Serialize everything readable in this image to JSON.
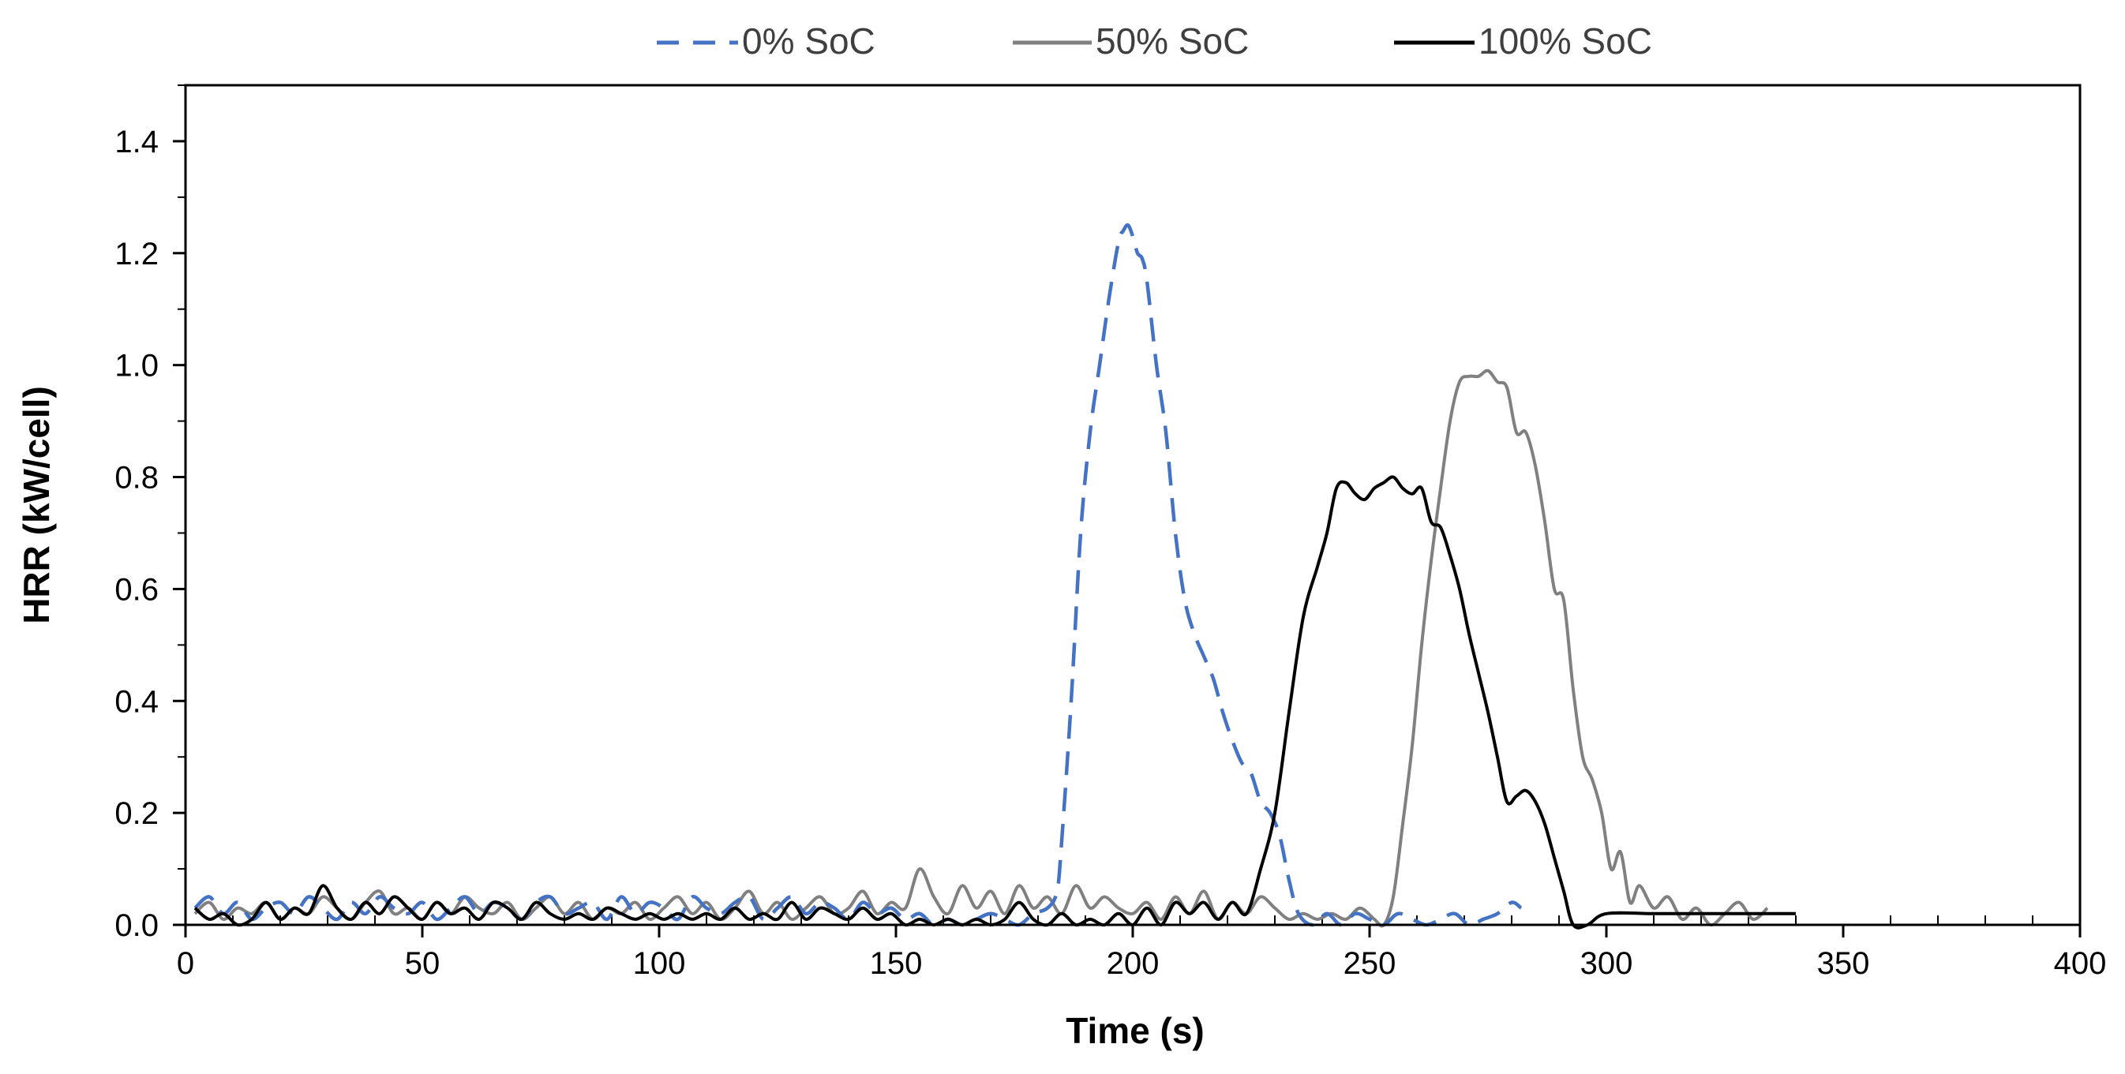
{
  "chart_data": {
    "type": "line",
    "title": "",
    "xlabel": "Time (s)",
    "ylabel": "HRR (kW/cell)",
    "xlim": [
      0,
      400
    ],
    "ylim": [
      0,
      1.5
    ],
    "xticks": [
      0,
      50,
      100,
      150,
      200,
      250,
      300,
      350,
      400
    ],
    "xtick_labels": [
      "0",
      "50",
      "100",
      "150",
      "200",
      "250",
      "300",
      "350",
      "400"
    ],
    "yticks": [
      0.0,
      0.2,
      0.4,
      0.6,
      0.8,
      1.0,
      1.2,
      1.4
    ],
    "ytick_labels": [
      "0.0",
      "0.2",
      "0.4",
      "0.6",
      "0.8",
      "1.0",
      "1.2",
      "1.4"
    ],
    "grid": false,
    "legend_position": "top",
    "series": [
      {
        "name": "0% SoC",
        "color": "#4472C4",
        "dash": "dashed",
        "x": [
          2,
          5,
          8,
          11,
          14,
          17,
          20,
          23,
          26,
          29,
          32,
          35,
          38,
          41,
          44,
          47,
          50,
          53,
          56,
          59,
          62,
          65,
          68,
          71,
          74,
          77,
          80,
          83,
          86,
          89,
          92,
          95,
          98,
          101,
          104,
          107,
          110,
          113,
          116,
          119,
          122,
          125,
          128,
          131,
          134,
          137,
          140,
          143,
          146,
          149,
          152,
          155,
          158,
          161,
          164,
          167,
          170,
          173,
          176,
          179,
          182,
          184,
          185,
          187,
          189,
          191,
          193,
          195,
          197,
          198,
          199,
          200,
          201,
          202,
          203,
          205,
          207,
          209,
          211,
          213,
          215,
          217,
          219,
          221,
          223,
          225,
          227,
          229,
          231,
          233,
          235,
          238,
          241,
          244,
          247,
          250,
          253,
          256,
          259,
          262,
          265,
          268,
          271,
          274,
          277,
          280,
          282
        ],
        "y": [
          0.03,
          0.05,
          0.02,
          0.04,
          0.01,
          0.03,
          0.04,
          0.02,
          0.05,
          0.03,
          0.01,
          0.04,
          0.02,
          0.05,
          0.03,
          0.02,
          0.04,
          0.01,
          0.03,
          0.05,
          0.02,
          0.04,
          0.03,
          0.01,
          0.04,
          0.05,
          0.02,
          0.03,
          0.04,
          0.01,
          0.05,
          0.02,
          0.04,
          0.03,
          0.01,
          0.05,
          0.03,
          0.02,
          0.04,
          0.05,
          0.01,
          0.03,
          0.05,
          0.02,
          0.04,
          0.03,
          0.01,
          0.04,
          0.02,
          0.03,
          0.01,
          0.02,
          0.0,
          0.01,
          0.0,
          0.01,
          0.02,
          0.01,
          0.0,
          0.02,
          0.03,
          0.06,
          0.15,
          0.4,
          0.7,
          0.88,
          1.0,
          1.12,
          1.22,
          1.24,
          1.25,
          1.23,
          1.2,
          1.19,
          1.15,
          1.0,
          0.88,
          0.7,
          0.58,
          0.52,
          0.48,
          0.44,
          0.38,
          0.33,
          0.29,
          0.27,
          0.22,
          0.2,
          0.16,
          0.08,
          0.02,
          0.0,
          0.02,
          0.0,
          0.02,
          0.01,
          0.0,
          0.02,
          0.01,
          0.0,
          0.01,
          0.02,
          0.0,
          0.01,
          0.02,
          0.04,
          0.03
        ]
      },
      {
        "name": "50% SoC",
        "color": "#808080",
        "dash": "solid",
        "x": [
          2,
          5,
          8,
          11,
          14,
          17,
          20,
          23,
          26,
          29,
          32,
          35,
          38,
          41,
          44,
          47,
          50,
          53,
          56,
          59,
          62,
          65,
          68,
          71,
          74,
          77,
          80,
          83,
          86,
          89,
          92,
          95,
          98,
          101,
          104,
          107,
          110,
          113,
          116,
          119,
          122,
          125,
          128,
          131,
          134,
          137,
          140,
          143,
          146,
          149,
          152,
          155,
          158,
          161,
          164,
          167,
          170,
          173,
          176,
          179,
          182,
          185,
          188,
          191,
          194,
          197,
          200,
          203,
          206,
          209,
          212,
          215,
          218,
          221,
          224,
          227,
          230,
          233,
          236,
          239,
          242,
          245,
          248,
          251,
          253,
          255,
          257,
          259,
          261,
          263,
          265,
          267,
          269,
          271,
          273,
          275,
          277,
          279,
          281,
          283,
          285,
          287,
          289,
          291,
          293,
          295,
          297,
          299,
          301,
          303,
          305,
          307,
          310,
          313,
          316,
          319,
          322,
          325,
          328,
          331,
          334
        ],
        "y": [
          0.02,
          0.04,
          0.01,
          0.03,
          0.02,
          0.04,
          0.01,
          0.03,
          0.02,
          0.05,
          0.03,
          0.01,
          0.04,
          0.06,
          0.02,
          0.03,
          0.01,
          0.04,
          0.02,
          0.05,
          0.03,
          0.02,
          0.04,
          0.01,
          0.03,
          0.05,
          0.02,
          0.04,
          0.01,
          0.03,
          0.02,
          0.04,
          0.01,
          0.03,
          0.05,
          0.02,
          0.04,
          0.01,
          0.03,
          0.06,
          0.02,
          0.04,
          0.01,
          0.03,
          0.05,
          0.02,
          0.03,
          0.06,
          0.02,
          0.04,
          0.03,
          0.1,
          0.05,
          0.02,
          0.07,
          0.03,
          0.06,
          0.02,
          0.07,
          0.03,
          0.05,
          0.02,
          0.07,
          0.03,
          0.05,
          0.03,
          0.02,
          0.04,
          0.01,
          0.05,
          0.02,
          0.06,
          0.01,
          0.04,
          0.02,
          0.05,
          0.03,
          0.01,
          0.02,
          0.01,
          0.02,
          0.01,
          0.03,
          0.01,
          0.0,
          0.05,
          0.18,
          0.32,
          0.5,
          0.65,
          0.78,
          0.9,
          0.97,
          0.98,
          0.98,
          0.99,
          0.97,
          0.96,
          0.88,
          0.88,
          0.82,
          0.72,
          0.6,
          0.58,
          0.42,
          0.3,
          0.26,
          0.2,
          0.1,
          0.13,
          0.04,
          0.07,
          0.03,
          0.05,
          0.01,
          0.03,
          0.0,
          0.02,
          0.04,
          0.01,
          0.03
        ]
      },
      {
        "name": "100% SoC",
        "color": "#000000",
        "dash": "solid",
        "x": [
          2,
          5,
          8,
          11,
          14,
          17,
          20,
          23,
          26,
          29,
          32,
          35,
          38,
          41,
          44,
          47,
          50,
          53,
          56,
          59,
          62,
          65,
          68,
          71,
          74,
          77,
          80,
          83,
          86,
          89,
          92,
          95,
          98,
          101,
          104,
          107,
          110,
          113,
          116,
          119,
          122,
          125,
          128,
          131,
          134,
          137,
          140,
          143,
          146,
          149,
          152,
          155,
          158,
          161,
          164,
          167,
          170,
          173,
          176,
          179,
          182,
          185,
          188,
          191,
          194,
          197,
          200,
          203,
          206,
          209,
          212,
          215,
          218,
          221,
          224,
          227,
          230,
          233,
          236,
          239,
          241,
          243,
          245,
          247,
          249,
          251,
          253,
          255,
          257,
          259,
          261,
          263,
          265,
          267,
          269,
          271,
          273,
          275,
          277,
          279,
          281,
          283,
          285,
          287,
          289,
          291,
          293,
          296,
          300,
          310,
          320,
          330,
          335,
          340
        ],
        "y": [
          0.03,
          0.01,
          0.02,
          0.0,
          0.01,
          0.04,
          0.01,
          0.03,
          0.02,
          0.07,
          0.03,
          0.01,
          0.04,
          0.02,
          0.05,
          0.03,
          0.01,
          0.04,
          0.02,
          0.03,
          0.01,
          0.04,
          0.03,
          0.01,
          0.04,
          0.02,
          0.01,
          0.02,
          0.01,
          0.03,
          0.02,
          0.01,
          0.02,
          0.01,
          0.02,
          0.01,
          0.02,
          0.01,
          0.03,
          0.01,
          0.02,
          0.01,
          0.04,
          0.01,
          0.03,
          0.02,
          0.01,
          0.03,
          0.01,
          0.02,
          0.0,
          0.01,
          0.0,
          0.01,
          0.0,
          0.01,
          0.0,
          0.01,
          0.04,
          0.01,
          0.0,
          0.02,
          0.0,
          0.01,
          0.0,
          0.02,
          0.0,
          0.03,
          0.0,
          0.04,
          0.02,
          0.04,
          0.01,
          0.04,
          0.02,
          0.1,
          0.2,
          0.38,
          0.55,
          0.64,
          0.7,
          0.78,
          0.79,
          0.77,
          0.76,
          0.78,
          0.79,
          0.8,
          0.78,
          0.77,
          0.78,
          0.72,
          0.71,
          0.66,
          0.6,
          0.52,
          0.45,
          0.38,
          0.3,
          0.22,
          0.23,
          0.24,
          0.22,
          0.18,
          0.12,
          0.06,
          0.0,
          0.0,
          0.02,
          0.02,
          0.02,
          0.02,
          0.02,
          0.02
        ]
      }
    ]
  }
}
